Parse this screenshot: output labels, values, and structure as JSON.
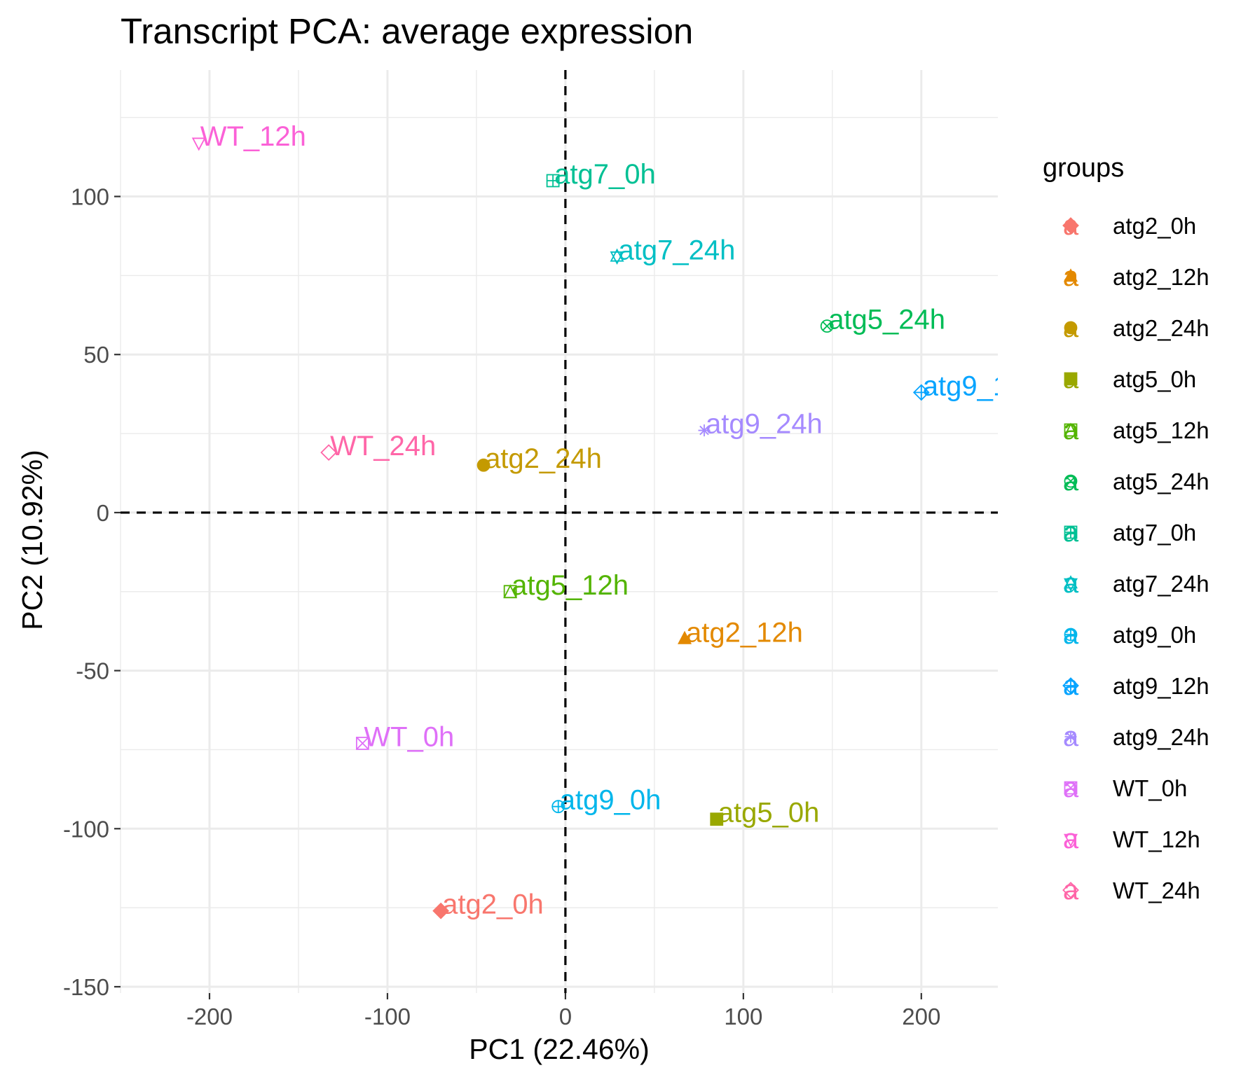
{
  "chart_data": {
    "type": "scatter",
    "title": "Transcript PCA: average expression",
    "xlabel": "PC1 (22.46%)",
    "ylabel": "PC2 (10.92%)",
    "xlim": [
      -250,
      243
    ],
    "ylim": [
      -152,
      140
    ],
    "x_ticks": [
      -200,
      -100,
      0,
      100,
      200
    ],
    "y_ticks": [
      -150,
      -100,
      -50,
      0,
      50,
      100
    ],
    "x_tick_labels": [
      "-200",
      "-100",
      "0",
      "100",
      "200"
    ],
    "y_tick_labels": [
      "-150",
      "-100",
      "-50",
      "0",
      "50",
      "100"
    ],
    "grid": true,
    "reference_lines": [
      {
        "axis": "x",
        "value": 0,
        "style": "dashed"
      },
      {
        "axis": "y",
        "value": 0,
        "style": "dashed"
      }
    ],
    "legend": {
      "title": "groups",
      "position": "right",
      "key_glyph": "a"
    },
    "points": [
      {
        "label": "atg2_0h",
        "x": -70,
        "y": -126,
        "color": "#F8766D",
        "shape": "diamond-filled"
      },
      {
        "label": "atg2_12h",
        "x": 67,
        "y": -40,
        "color": "#E38900",
        "shape": "triangle-filled"
      },
      {
        "label": "atg2_24h",
        "x": -46,
        "y": 15,
        "color": "#C49A00",
        "shape": "circle-filled"
      },
      {
        "label": "atg5_0h",
        "x": 85,
        "y": -97,
        "color": "#99A800",
        "shape": "square-filled"
      },
      {
        "label": "atg5_12h",
        "x": -31,
        "y": -25,
        "color": "#53B400",
        "shape": "square-triangle"
      },
      {
        "label": "atg5_24h",
        "x": 147,
        "y": 59,
        "color": "#00BC56",
        "shape": "circle-x"
      },
      {
        "label": "atg7_0h",
        "x": -7,
        "y": 105,
        "color": "#00C094",
        "shape": "square-plus"
      },
      {
        "label": "atg7_24h",
        "x": 29,
        "y": 81,
        "color": "#00BFC4",
        "shape": "star-of-david"
      },
      {
        "label": "atg9_0h",
        "x": -4,
        "y": -93,
        "color": "#00B6EB",
        "shape": "circle-plus"
      },
      {
        "label": "atg9_12h",
        "x": 200,
        "y": 38,
        "color": "#06A4FF",
        "shape": "diamond-plus"
      },
      {
        "label": "atg9_24h",
        "x": 78,
        "y": 26,
        "color": "#A58AFF",
        "shape": "asterisk"
      },
      {
        "label": "WT_0h",
        "x": -114,
        "y": -73,
        "color": "#DF70F8",
        "shape": "square-x"
      },
      {
        "label": "WT_12h",
        "x": -206,
        "y": 117,
        "color": "#FB61D7",
        "shape": "triangle-down"
      },
      {
        "label": "WT_24h",
        "x": -133,
        "y": 19,
        "color": "#FF66A8",
        "shape": "diamond"
      }
    ]
  }
}
